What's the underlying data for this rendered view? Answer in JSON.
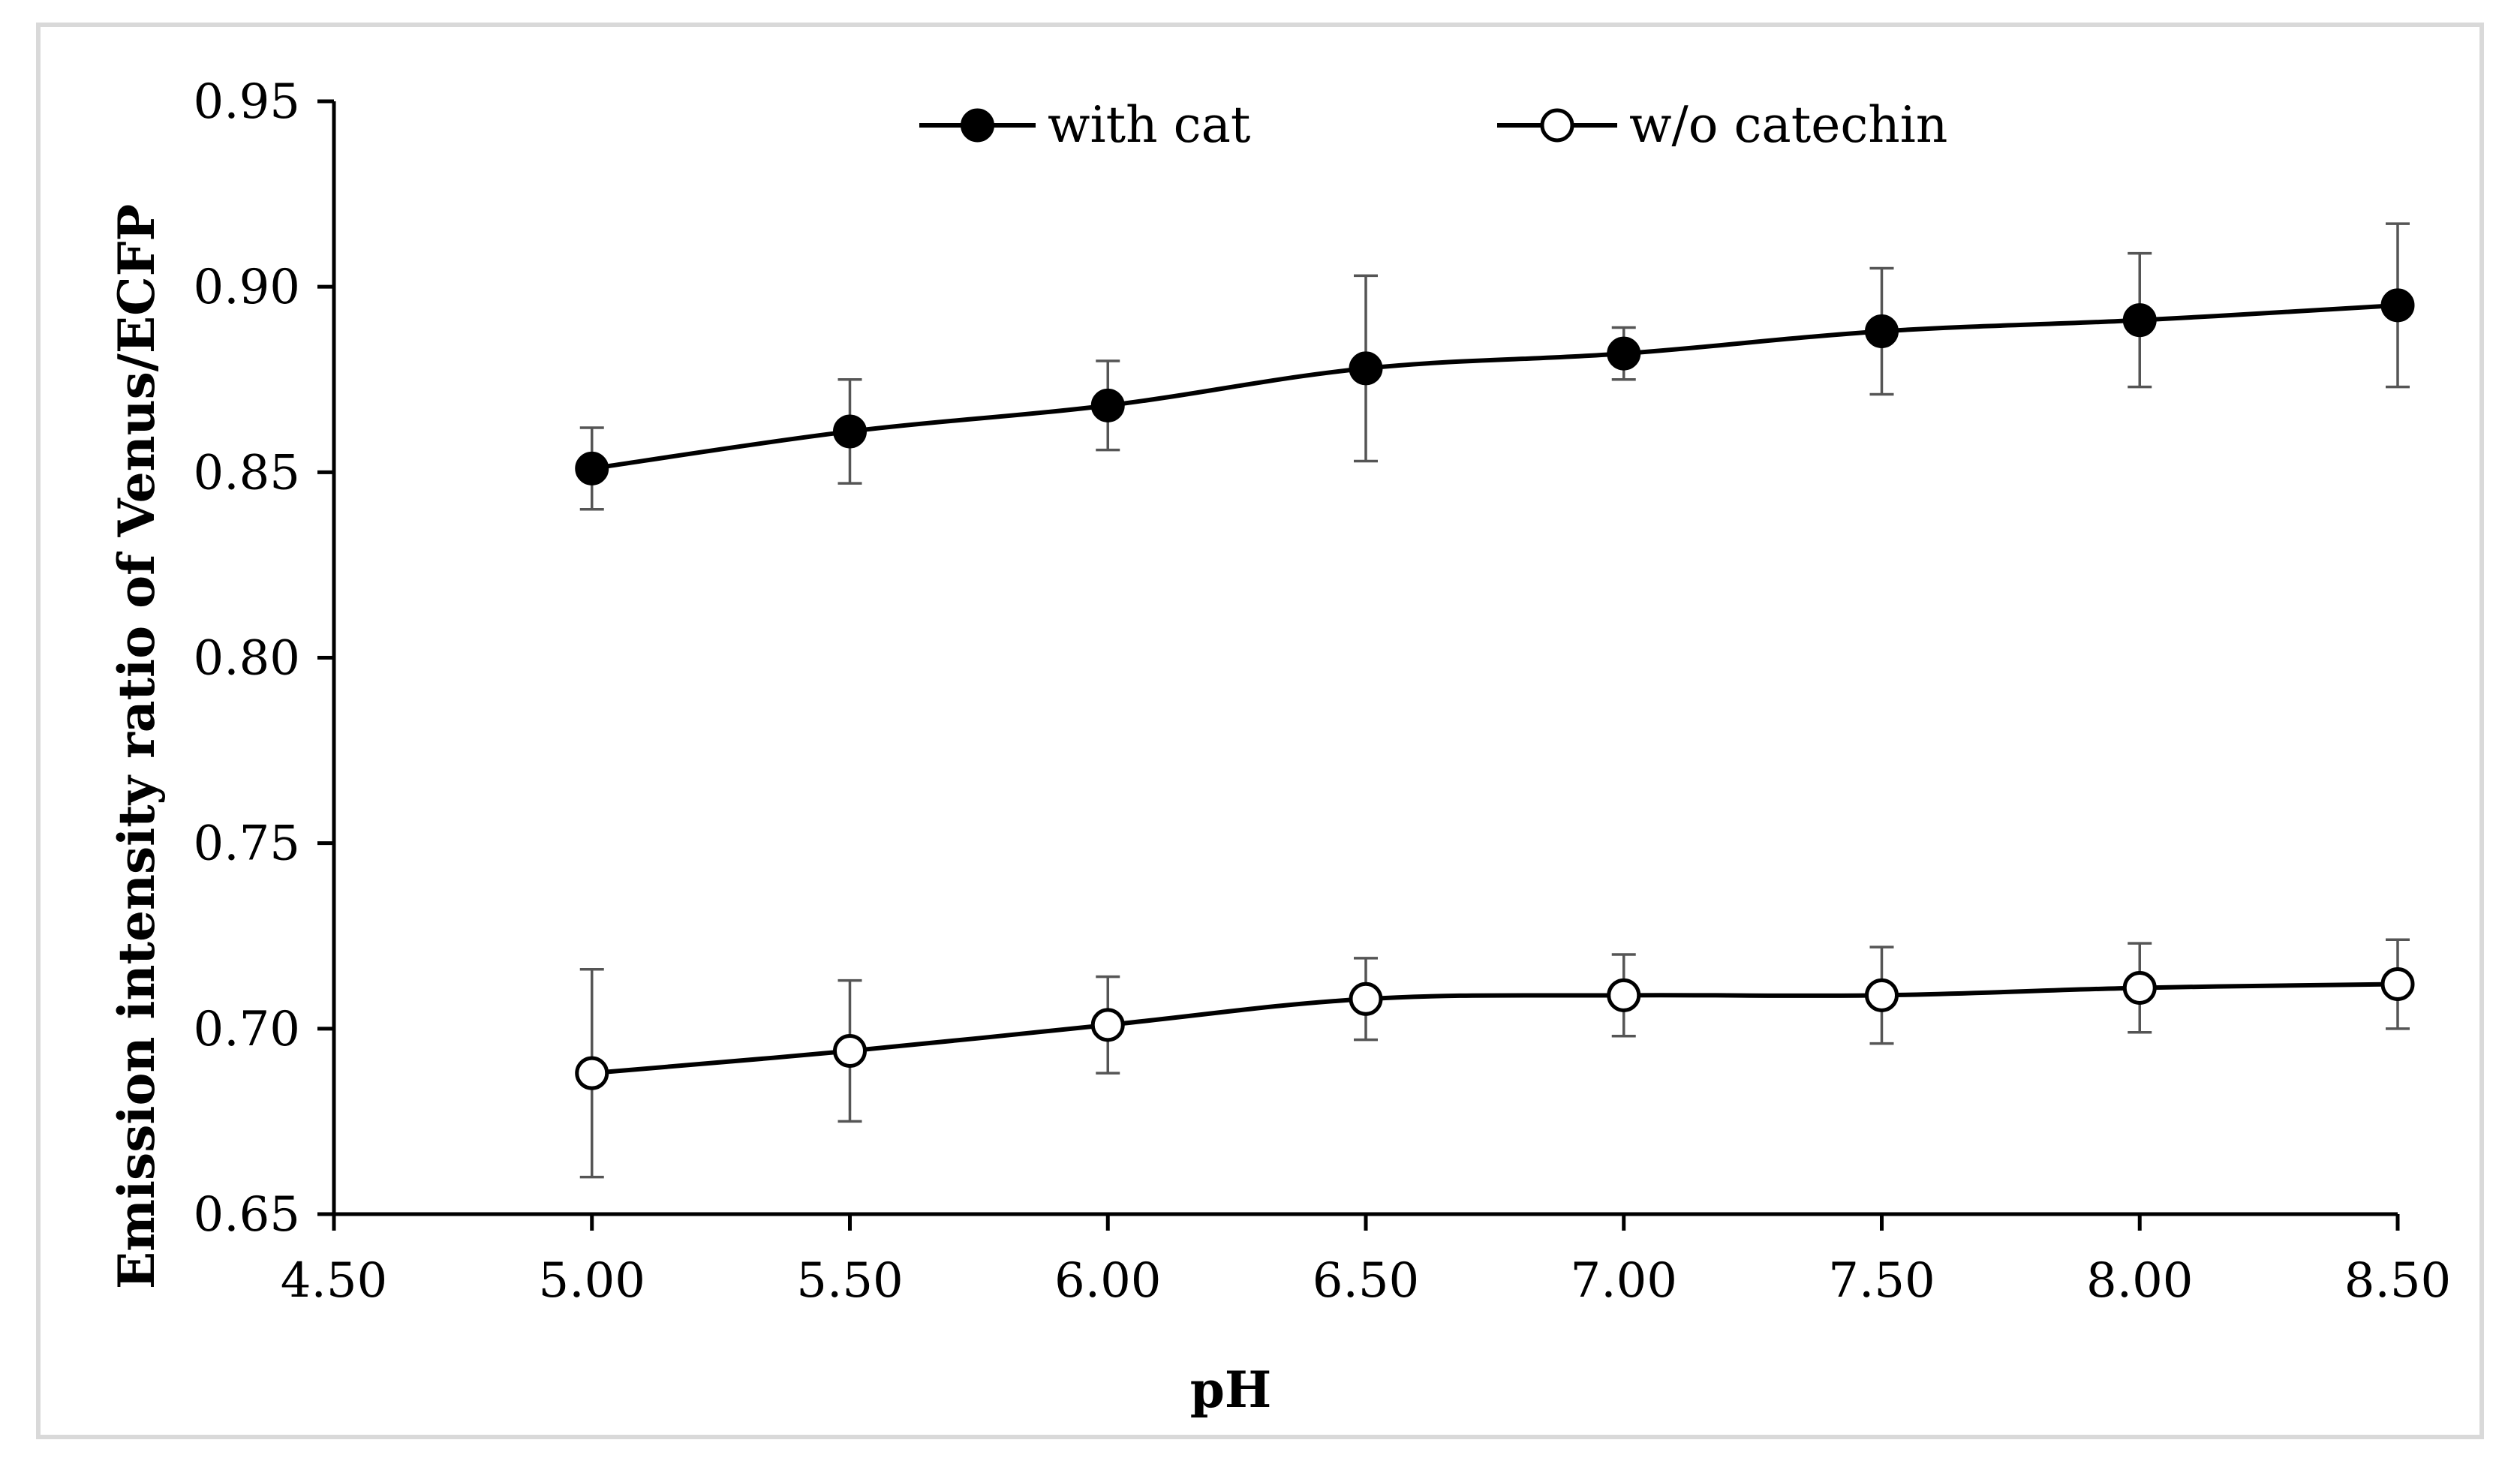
{
  "chart_data": {
    "type": "line",
    "title": "",
    "xlabel": "pH",
    "ylabel": "Emission intensity ratio of Venus/ECFP",
    "xlim": [
      4.5,
      8.5
    ],
    "ylim": [
      0.65,
      0.95
    ],
    "x_ticks": [
      "4.50",
      "5.00",
      "5.50",
      "6.00",
      "6.50",
      "7.00",
      "7.50",
      "8.00",
      "8.50"
    ],
    "y_ticks": [
      "0.65",
      "0.70",
      "0.75",
      "0.80",
      "0.85",
      "0.90",
      "0.95"
    ],
    "x": [
      5.0,
      5.5,
      6.0,
      6.5,
      7.0,
      7.5,
      8.0,
      8.5
    ],
    "legend_position": "top-center",
    "grid": false,
    "series": [
      {
        "name": "with cat",
        "marker": "filled-circle",
        "color": "#000000",
        "values": [
          0.851,
          0.861,
          0.868,
          0.878,
          0.882,
          0.888,
          0.891,
          0.895
        ],
        "error": [
          0.011,
          0.014,
          0.012,
          0.025,
          0.007,
          0.017,
          0.018,
          0.022
        ]
      },
      {
        "name": "w/o catechin",
        "marker": "open-circle",
        "color": "#000000",
        "values": [
          0.688,
          0.694,
          0.701,
          0.708,
          0.709,
          0.709,
          0.711,
          0.712
        ],
        "error": [
          0.028,
          0.019,
          0.013,
          0.011,
          0.011,
          0.013,
          0.012,
          0.012
        ]
      }
    ]
  }
}
